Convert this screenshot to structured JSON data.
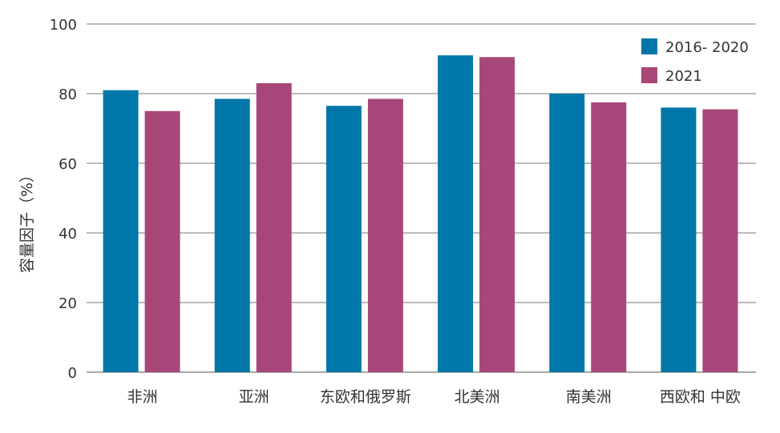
{
  "chart_data": {
    "type": "bar",
    "title": "",
    "xlabel": "",
    "ylabel": "容量因子（%）",
    "ylim": [
      0,
      100
    ],
    "yticks": [
      0,
      20,
      40,
      60,
      80,
      100
    ],
    "categories": [
      "非洲",
      "亚洲",
      "东欧和俄罗斯",
      "北美洲",
      "南美洲",
      "西欧和 中欧"
    ],
    "series": [
      {
        "name": "2016- 2020",
        "color": "#0077a8",
        "values": [
          81,
          78.5,
          76.5,
          91,
          80,
          76
        ]
      },
      {
        "name": "2021",
        "color": "#a8467a",
        "values": [
          75,
          83,
          78.5,
          90.5,
          77.5,
          75.5
        ]
      }
    ],
    "grid": true,
    "legend_position": "top-right"
  }
}
